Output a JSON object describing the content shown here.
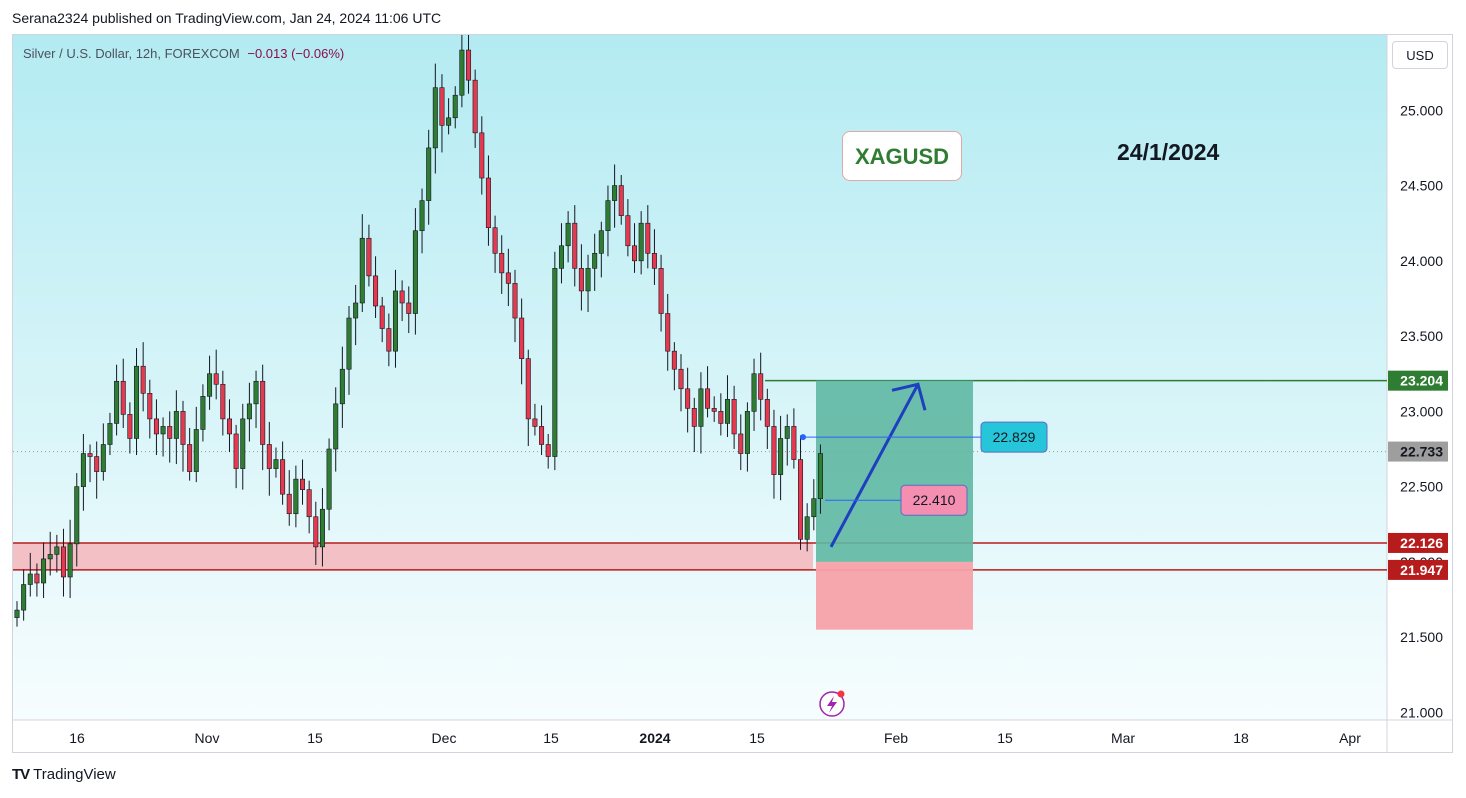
{
  "header": {
    "published_by": "Serana2324 published on TradingView.com, Jan 24, 2024 11:06 UTC"
  },
  "legend": {
    "symbol": "Silver / U.S. Dollar, 12h, FOREXCOM",
    "change": "−0.013 (−0.06%)"
  },
  "currency": "USD",
  "annotations": {
    "symbol_box": "XAGUSD",
    "date_text": "24/1/2024"
  },
  "footer": {
    "brand": "TradingView",
    "logo": "TV"
  },
  "colors": {
    "up": "#26a69a",
    "up_candle": "#2e7d32",
    "down_candle": "#e53950",
    "support_zone": "#f4b6bc",
    "support_line": "#b71c1c",
    "target_line": "#2e7d32",
    "profit_box": "#5fb8a2",
    "loss_box": "#f7a1a9",
    "arrow": "#1e3fbf",
    "bg_top": "#b3ebf2",
    "bg_bottom": "#f7fdfe"
  },
  "chart_data": {
    "type": "candlestick",
    "ylim": [
      20.95,
      25.5
    ],
    "y_ticks": [
      21.0,
      21.5,
      22.0,
      22.5,
      23.0,
      23.5,
      24.0,
      24.5,
      25.0
    ],
    "y_tick_labels": [
      "21.000",
      "21.500",
      "22.000",
      "22.500",
      "23.000",
      "23.500",
      "24.000",
      "24.500",
      "25.000"
    ],
    "x_ticks": [
      {
        "label": "16",
        "bold": false
      },
      {
        "label": "Nov",
        "bold": false
      },
      {
        "label": "15",
        "bold": false
      },
      {
        "label": "Dec",
        "bold": false
      },
      {
        "label": "15",
        "bold": false
      },
      {
        "label": "2024",
        "bold": true
      },
      {
        "label": "15",
        "bold": false
      },
      {
        "label": "Feb",
        "bold": false
      },
      {
        "label": "15",
        "bold": false
      },
      {
        "label": "Mar",
        "bold": false
      },
      {
        "label": "18",
        "bold": false
      },
      {
        "label": "Apr",
        "bold": false
      }
    ],
    "price_labels": [
      {
        "value": 23.204,
        "label": "23.204",
        "color": "#2e7d32"
      },
      {
        "value": 22.733,
        "label": "22.733",
        "color": "#9e9e9e"
      },
      {
        "value": 22.126,
        "label": "22.126",
        "color": "#b71c1c"
      },
      {
        "value": 21.947,
        "label": "21.947",
        "color": "#b71c1c"
      }
    ],
    "levels": {
      "target": 23.204,
      "entry": 22.0,
      "stop": 21.55,
      "support_top": 22.126,
      "support_bottom": 21.947,
      "last": 22.733
    },
    "callouts": [
      {
        "value": 22.829,
        "label": "22.829",
        "color": "#26c6da"
      },
      {
        "value": 22.41,
        "label": "22.410",
        "color": "#f48fb1"
      }
    ],
    "closes": [
      21.68,
      21.85,
      21.92,
      21.86,
      22.02,
      22.05,
      22.1,
      21.9,
      22.12,
      22.5,
      22.72,
      22.7,
      22.6,
      22.78,
      22.92,
      23.2,
      22.98,
      22.82,
      23.3,
      23.12,
      22.95,
      22.85,
      22.9,
      22.82,
      23.0,
      22.78,
      22.6,
      22.88,
      23.1,
      23.25,
      23.18,
      22.95,
      22.85,
      22.62,
      22.95,
      23.05,
      23.2,
      22.78,
      22.62,
      22.68,
      22.45,
      22.32,
      22.55,
      22.48,
      22.3,
      22.1,
      22.35,
      22.75,
      23.05,
      23.28,
      23.62,
      23.72,
      24.15,
      23.9,
      23.7,
      23.55,
      23.4,
      23.8,
      23.72,
      23.65,
      24.2,
      24.4,
      24.75,
      25.15,
      24.9,
      24.95,
      25.1,
      25.4,
      25.2,
      24.85,
      24.55,
      24.22,
      24.05,
      23.92,
      23.85,
      23.62,
      23.35,
      22.95,
      22.9,
      22.78,
      22.7,
      23.95,
      24.1,
      24.25,
      23.95,
      23.8,
      23.95,
      24.05,
      24.2,
      24.4,
      24.5,
      24.3,
      24.1,
      24.0,
      24.25,
      24.05,
      23.95,
      23.65,
      23.4,
      23.28,
      23.15,
      23.02,
      22.9,
      23.15,
      23.02,
      23.0,
      22.92,
      23.08,
      22.85,
      22.72,
      23.0,
      23.25,
      23.08,
      22.9,
      22.58,
      22.82,
      22.9,
      22.68,
      22.15,
      22.3,
      22.42,
      22.72
    ]
  }
}
